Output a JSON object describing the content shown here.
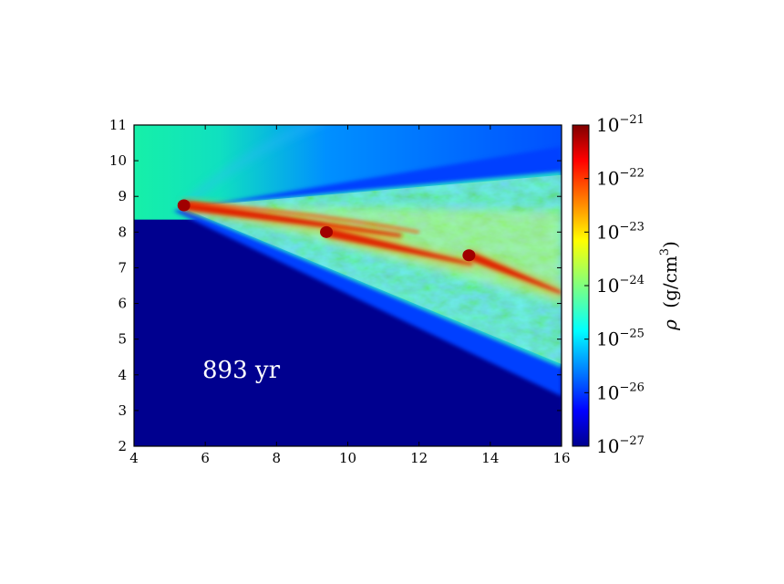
{
  "chart_data": {
    "type": "heatmap",
    "title": "",
    "xlabel": "",
    "ylabel": "",
    "xlim": [
      4,
      16
    ],
    "ylim": [
      2,
      11
    ],
    "x_ticks": [
      "4",
      "6",
      "8",
      "10",
      "12",
      "14",
      "16"
    ],
    "y_ticks": [
      "2",
      "3",
      "4",
      "5",
      "6",
      "7",
      "8",
      "9",
      "10",
      "11"
    ],
    "annotation": "893 yr",
    "colorbar": {
      "label_symbol": "ρ",
      "label_units": "(g/cm",
      "label_exponent": "3",
      "label_close": ")",
      "scale": "log",
      "range": [
        1e-27,
        1e-21
      ],
      "tick_base": "10",
      "tick_exponents": [
        "−21",
        "−22",
        "−23",
        "−24",
        "−25",
        "−26",
        "−27"
      ],
      "colormap": "jet"
    },
    "features": [
      {
        "name": "clump",
        "x": 5.4,
        "y": 8.75,
        "tail_end": [
          11.5,
          7.9
        ]
      },
      {
        "name": "clump",
        "x": 9.4,
        "y": 8.0,
        "tail_end": [
          13.5,
          7.1
        ]
      },
      {
        "name": "clump",
        "x": 13.4,
        "y": 7.35,
        "tail_end": [
          16.0,
          6.3
        ]
      }
    ],
    "colors": {
      "background_low": "#00008f",
      "ambient_upper": "#10f0a0",
      "shell_blue": "#0040ff",
      "turbulent_green": "#50ff90",
      "jet_red": "#e02000"
    }
  }
}
